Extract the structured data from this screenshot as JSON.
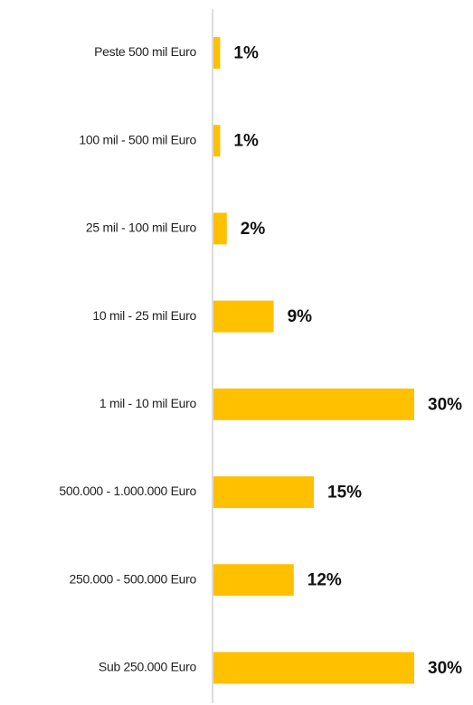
{
  "chart_data": {
    "type": "hbar",
    "categories": [
      "Peste 500 mil Euro",
      "100 mil - 500 mil Euro",
      "25 mil - 100 mil Euro",
      "10 mil - 25 mil Euro",
      "1 mil - 10 mil Euro",
      "500.000 - 1.000.000 Euro",
      "250.000 - 500.000 Euro",
      "Sub 250.000 Euro"
    ],
    "values": [
      1,
      1,
      2,
      9,
      30,
      15,
      12,
      30
    ],
    "value_labels": [
      "1%",
      "1%",
      "2%",
      "9%",
      "30%",
      "15%",
      "12%",
      "30%"
    ],
    "color": "#ffc000"
  }
}
